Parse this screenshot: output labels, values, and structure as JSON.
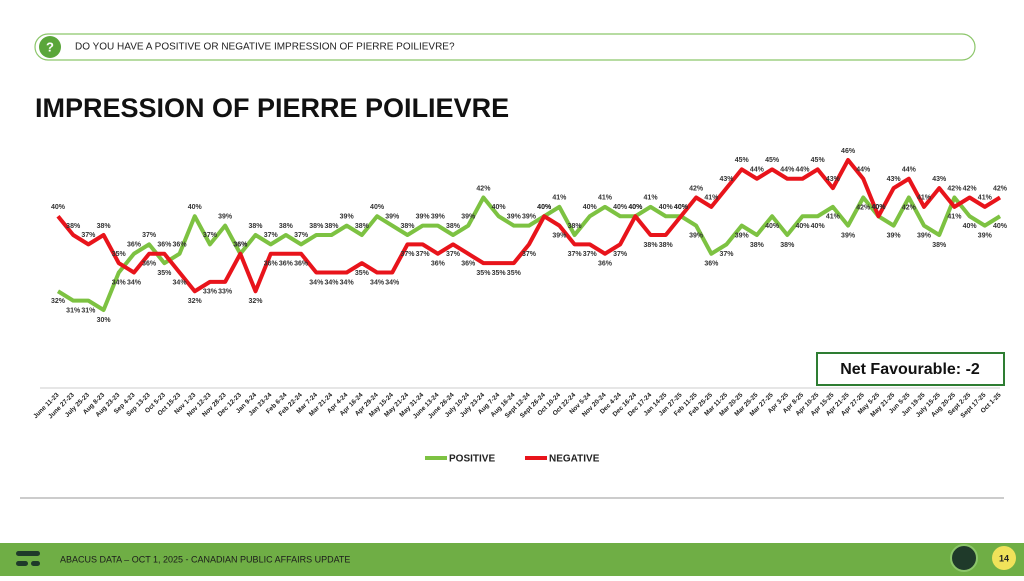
{
  "header": {
    "question": "DO YOU HAVE A POSITIVE OR NEGATIVE IMPRESSION OF PIERRE POILIEVRE?"
  },
  "chart_data": {
    "type": "line",
    "title": "IMPRESSION OF PIERRE POILIEVRE",
    "annotation": "Net Favourable: -2",
    "legend": "bottom",
    "categories": [
      "June 11-23",
      "June 27-23",
      "July 25-23",
      "Aug 8-23",
      "Aug 23-23",
      "Sep 4-23",
      "Sep 13-23",
      "Oct 5-23",
      "Oct 15-23",
      "Nov 1-23",
      "Nov 12-23",
      "Nov 28-23",
      "Dec 12-23",
      "Jan 9-24",
      "Jan 23-24",
      "Feb 6-24",
      "Feb 22-24",
      "Mar 7-24",
      "Mar 21-24",
      "Apr 4-24",
      "Apr 16-24",
      "Apr 29-24",
      "May 15-24",
      "May 21-24",
      "May 31-24",
      "June 13-24",
      "June 26-24",
      "July 10-24",
      "July 23-24",
      "Aug 7-24",
      "Aug 16-24",
      "Sept 12-24",
      "Sept 26-24",
      "Oct 10-24",
      "Oct 22-24",
      "Nov 5-24",
      "Nov 20-24",
      "Dec 4-24",
      "Dec 16-24",
      "Dec 17-24",
      "Jan 14-25",
      "Jan 27-25",
      "Feb 11-25",
      "Feb 25-25",
      "Mar 11-25",
      "Mar 20-25",
      "Mar 25-25",
      "Mar 27-25",
      "Apr 3-25",
      "Apr 8-25",
      "Apr 10-25",
      "Apr 15-25",
      "Apr 21-25",
      "Apr 27-25",
      "May 5-25",
      "May 21-25",
      "Jun 5-25",
      "Jun 19-25",
      "July 15-25",
      "Aug 20-25",
      "Sept 2-25",
      "Sept 17-25",
      "Oct 1-25"
    ],
    "series": [
      {
        "name": "POSITIVE",
        "color": "#7dc242",
        "values": [
          32,
          31,
          31,
          30,
          34,
          36,
          37,
          35,
          36,
          40,
          37,
          39,
          36,
          38,
          37,
          38,
          37,
          38,
          38,
          39,
          38,
          40,
          39,
          38,
          39,
          39,
          38,
          39,
          42,
          40,
          39,
          39,
          40,
          41,
          38,
          40,
          41,
          40,
          40,
          41,
          40,
          40,
          39,
          36,
          37,
          39,
          38,
          40,
          38,
          40,
          40,
          41,
          39,
          42,
          40,
          39,
          42,
          39,
          38,
          42,
          40,
          39,
          40
        ],
        "value_labels": [
          "32%",
          "31%",
          "31%",
          "30%",
          "34%",
          "36%",
          "37%",
          "35%",
          "36%",
          "40%",
          "37%",
          "39%",
          "36%",
          "38%",
          "37%",
          "38%",
          "37%",
          "38%",
          "38%",
          "39%",
          "38%",
          "40%",
          "39%",
          "38%",
          "39%",
          "39%",
          "38%",
          "39%",
          "42%",
          "40%",
          "39%",
          "39%",
          "40%",
          "41%",
          "38%",
          "40%",
          "41%",
          "40%",
          "40%",
          "41%",
          "40%",
          "40%",
          "39%",
          "36%",
          "37%",
          "39%",
          "38%",
          "40%",
          "38%",
          "40%",
          "40%",
          "41%",
          "39%",
          "42%",
          "40%",
          "39%",
          "42%",
          "39%",
          "38%",
          "42%",
          "40%",
          "39%",
          "40%"
        ]
      },
      {
        "name": "NEGATIVE",
        "color": "#e8141b",
        "values": [
          40,
          38,
          37,
          38,
          35,
          34,
          36,
          36,
          34,
          32,
          33,
          33,
          36,
          32,
          36,
          36,
          36,
          34,
          34,
          34,
          35,
          34,
          34,
          37,
          37,
          36,
          37,
          36,
          35,
          35,
          35,
          37,
          40,
          39,
          37,
          37,
          36,
          37,
          40,
          38,
          38,
          40,
          42,
          41,
          43,
          45,
          44,
          45,
          44,
          44,
          45,
          43,
          46,
          44,
          40,
          43,
          44,
          41,
          43,
          41,
          42,
          41,
          42
        ],
        "value_labels": [
          "40%",
          "38%",
          "37%",
          "38%",
          "35%",
          "34%",
          "36%",
          "36%",
          "34%",
          "32%",
          "33%",
          "33%",
          "36%",
          "32%",
          "36%",
          "36%",
          "36%",
          "34%",
          "34%",
          "34%",
          "35%",
          "34%",
          "34%",
          "37%",
          "37%",
          "36%",
          "37%",
          "36%",
          "35%",
          "35%",
          "35%",
          "37%",
          "40%",
          "39%",
          "37%",
          "37%",
          "36%",
          "37%",
          "40%",
          "38%",
          "38%",
          "40%",
          "42%",
          "41%",
          "43%",
          "45%",
          "44%",
          "45%",
          "44%",
          "44%",
          "45%",
          "43%",
          "46%",
          "44%",
          "40%",
          "43%",
          "44%",
          "41%",
          "43%",
          "41%",
          "42%",
          "41%",
          "42%"
        ]
      }
    ]
  },
  "footer": {
    "text": "ABACUS DATA – OCT 1, 2025 - CANADIAN PUBLIC AFFAIRS UPDATE",
    "page": "14"
  }
}
